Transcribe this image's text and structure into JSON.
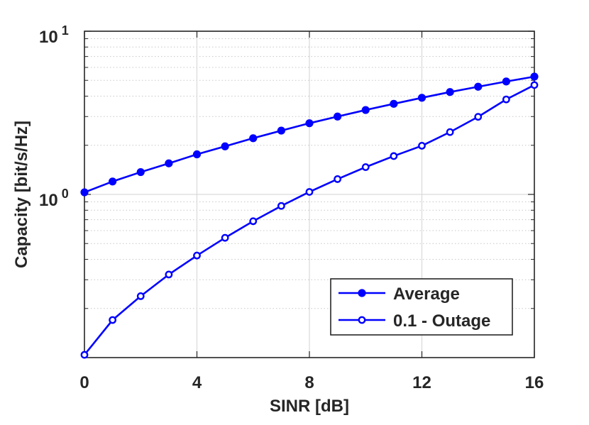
{
  "chart_data": {
    "type": "line",
    "title": "",
    "xlabel": "SINR [dB]",
    "ylabel": "Capacity [bit/s/Hz]",
    "xlim": [
      0,
      16
    ],
    "ylim": [
      0.1,
      10
    ],
    "yscale": "log",
    "xticks": [
      0,
      4,
      8,
      12,
      16
    ],
    "xtick_labels": [
      "0",
      "4",
      "8",
      "12",
      "16"
    ],
    "yticks": [
      {
        "value": 1,
        "base": "10",
        "exponent": "0"
      },
      {
        "value": 10,
        "base": "10",
        "exponent": "1"
      }
    ],
    "grid": true,
    "legend_position": "bottom-right",
    "color": "#0000ff",
    "x": [
      0,
      1,
      2,
      3,
      4,
      5,
      6,
      7,
      8,
      9,
      10,
      11,
      12,
      13,
      14,
      15,
      16
    ],
    "series": [
      {
        "name": "Average",
        "marker": "filled-circle",
        "values": [
          1.03,
          1.2,
          1.37,
          1.55,
          1.76,
          1.97,
          2.21,
          2.46,
          2.73,
          3.0,
          3.29,
          3.59,
          3.91,
          4.24,
          4.57,
          4.92,
          5.27
        ]
      },
      {
        "name": "0.1 - Outage",
        "marker": "open-circle",
        "values": [
          0.104,
          0.17,
          0.238,
          0.323,
          0.422,
          0.542,
          0.685,
          0.85,
          1.036,
          1.241,
          1.47,
          1.718,
          1.987,
          2.41,
          2.988,
          3.82,
          4.68
        ]
      }
    ]
  }
}
